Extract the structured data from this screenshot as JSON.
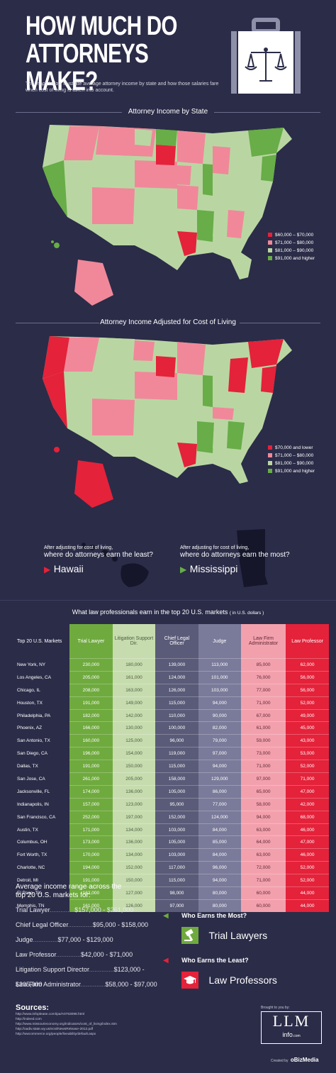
{
  "header": {
    "title_line1": "HOW MUCH DO",
    "title_line2": "ATTORNEYS MAKE?",
    "intro": "The maps below illustrate average attorney income by state and how those salaries fare when cost of living is taken into account.",
    "briefcase_icon": "briefcase-scales-icon"
  },
  "colors": {
    "bg": "#2b2c48",
    "tier1": "#e4223a",
    "tier2": "#f0889a",
    "tier3": "#b9d6a2",
    "tier4": "#68ad48",
    "trial": "#6faa3e",
    "litigation": "#c6dcae",
    "chief": "#5a5b78",
    "judge": "#7a7a9a",
    "admin": "#f3a0ad",
    "prof": "#e4223a"
  },
  "map1": {
    "title": "Attorney Income by State",
    "legend": [
      "$60,000 – $70,000",
      "$71,000 – $80,000",
      "$81,000 – $90,000",
      "$91,000 and higher"
    ]
  },
  "map2": {
    "title": "Attorney Income Adjusted for Cost of Living",
    "legend": [
      "$70,000 and lower",
      "$71,000 – $80,000",
      "$81,000 – $90,000",
      "$91,000 and higher"
    ]
  },
  "compare": {
    "least_label": "After adjusting for cost of living,",
    "least_question": "where do attorneys earn the least?",
    "least_state": "Hawaii",
    "most_label": "After adjusting for cost of living,",
    "most_question": "where do attorneys earn the most?",
    "most_state": "Mississippi"
  },
  "table": {
    "title": "What law professionals earn in the top 20 U.S. markets",
    "title_unit": "( in U.S. dollars )",
    "headers": [
      "Top 20 U.S. Markets",
      "Trial Lawyer",
      "Litigation Support Dir.",
      "Chief Legal Officer",
      "Judge",
      "Law Firm Administrator",
      "Law Professor"
    ],
    "rows": [
      [
        "New York, NY",
        "230,000",
        "180,000",
        "139,000",
        "113,000",
        "85,000",
        "62,000"
      ],
      [
        "Los Angeles, CA",
        "205,000",
        "161,000",
        "124,000",
        "101,000",
        "76,000",
        "56,000"
      ],
      [
        "Chicago, IL",
        "208,000",
        "163,000",
        "126,000",
        "103,000",
        "77,000",
        "56,000"
      ],
      [
        "Houston, TX",
        "191,000",
        "149,000",
        "115,000",
        "94,000",
        "71,000",
        "52,000"
      ],
      [
        "Philadelphia, PA",
        "182,000",
        "142,000",
        "110,000",
        "90,000",
        "67,000",
        "49,000"
      ],
      [
        "Phoenix, AZ",
        "166,000",
        "130,000",
        "100,000",
        "82,000",
        "61,000",
        "45,000"
      ],
      [
        "San Antonio, TX",
        "160,000",
        "125,000",
        "96,000",
        "79,000",
        "59,000",
        "43,000"
      ],
      [
        "San Diego, CA",
        "196,000",
        "154,000",
        "119,000",
        "97,000",
        "73,000",
        "53,000"
      ],
      [
        "Dallas, TX",
        "191,000",
        "150,000",
        "115,000",
        "94,000",
        "71,000",
        "52,000"
      ],
      [
        "San Jose, CA",
        "261,000",
        "205,000",
        "158,000",
        "129,000",
        "97,000",
        "71,000"
      ],
      [
        "Jacksonville, FL",
        "174,000",
        "136,000",
        "105,000",
        "86,000",
        "65,000",
        "47,000"
      ],
      [
        "Indianapolis, IN",
        "157,000",
        "123,000",
        "95,000",
        "77,000",
        "58,000",
        "42,000"
      ],
      [
        "San Francisco, CA",
        "252,000",
        "197,000",
        "152,000",
        "124,000",
        "94,000",
        "68,000"
      ],
      [
        "Austin, TX",
        "171,000",
        "134,000",
        "103,000",
        "84,000",
        "63,000",
        "46,000"
      ],
      [
        "Columbus, OH",
        "173,000",
        "136,000",
        "105,000",
        "85,000",
        "64,000",
        "47,000"
      ],
      [
        "Fort Worth, TX",
        "170,000",
        "134,000",
        "103,000",
        "84,000",
        "63,000",
        "46,000"
      ],
      [
        "Charlotte, NC",
        "194,000",
        "152,000",
        "117,000",
        "96,000",
        "72,000",
        "52,000"
      ],
      [
        "Detroit, MI",
        "191,000",
        "150,000",
        "115,000",
        "94,000",
        "71,000",
        "52,000"
      ],
      [
        "El Paso, TX",
        "162,000",
        "127,000",
        "98,000",
        "80,000",
        "60,000",
        "44,000"
      ],
      [
        "Memphis, TN",
        "161,000",
        "126,000",
        "97,000",
        "80,000",
        "60,000",
        "44,000"
      ]
    ]
  },
  "ranges": {
    "title_line1": "Average income range across the",
    "title_line2": "top 20 U.S. markets for:",
    "items": [
      {
        "label": "Trial Lawyer",
        "range": "$157,000 - $261,000"
      },
      {
        "label": "Chief Legal Officer",
        "range": "$95,000 - $158,000"
      },
      {
        "label": "Judge",
        "range": "$77,000 - $129,000"
      },
      {
        "label": "Law Professor",
        "range": "$42,000 - $71,000"
      },
      {
        "label": "Litigation Support Director",
        "range": "$123,000 - $205,000"
      },
      {
        "label": "Law Firm Administrator",
        "range": "$58,000 - $97,000"
      }
    ]
  },
  "who": {
    "most_q": "Who Earns the Most?",
    "most_name": "Trial Lawyers",
    "most_icon": "gavel-icon",
    "least_q": "Who Earns the Least?",
    "least_name": "Law Professors",
    "least_icon": "graduation-cap-icon"
  },
  "sources": {
    "title": "Sources:",
    "lines": [
      "http://www.infoplease.com/ipa/A0763098.html",
      "http://indeed.com",
      "http://www.missourieconomy.org/indicators/cost_of_living/index.stm",
      "http://oadiv.state.wy.us/ecsi/NewsRelease-2012.pdf",
      "http://wwcommerce.org/people/liveability/default.aspx"
    ]
  },
  "footer": {
    "brought": "Brought to you by:",
    "logo_main": "LLM",
    "logo_sub": "info",
    "logo_sub_small": ".com",
    "created": "Created by",
    "creator": "oBizMedia"
  }
}
